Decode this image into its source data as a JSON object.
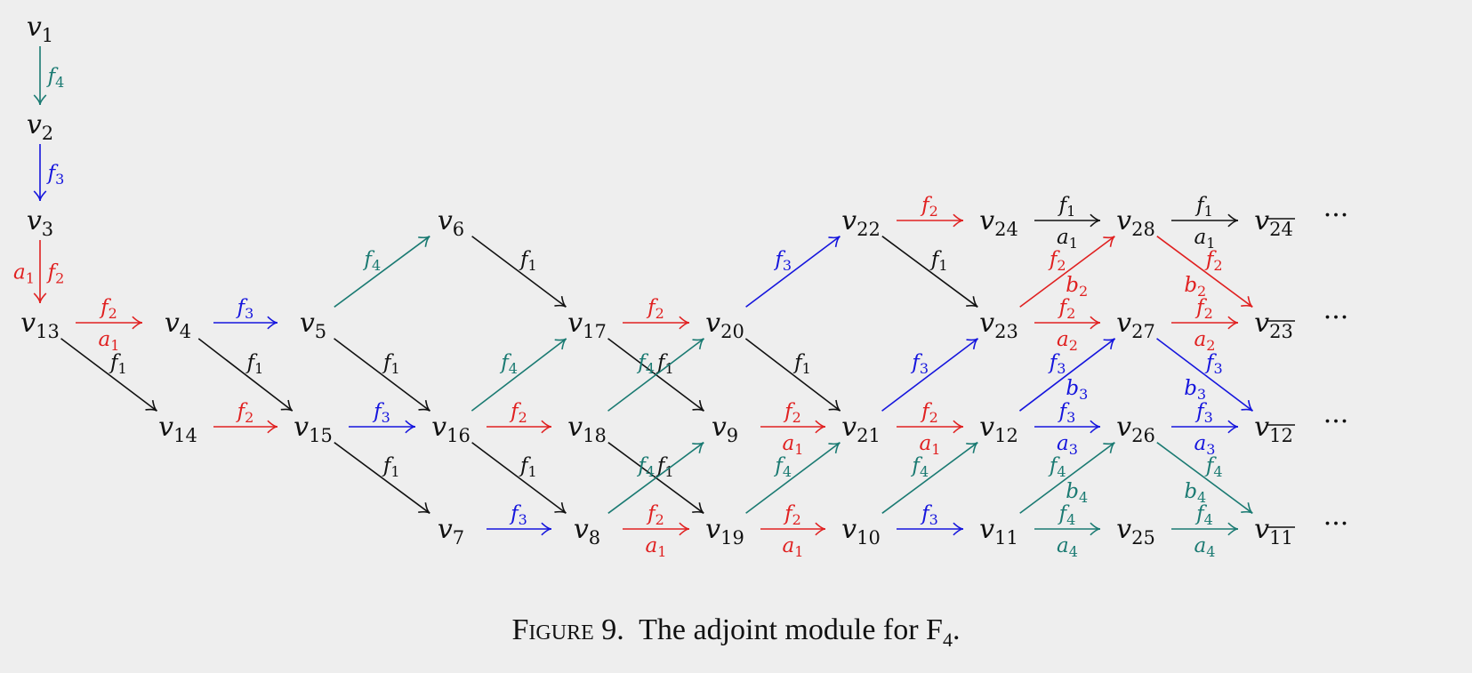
{
  "colors": {
    "black": "#111111",
    "red": "#e02020",
    "blue": "#1515dd",
    "teal": "#1a7a72"
  },
  "caption": {
    "prefix": "Figure 9.",
    "text": "The adjoint module for F",
    "sub": "4",
    "suffix": "."
  },
  "vertices": [
    {
      "id": "1",
      "label": "v",
      "sub": "1"
    },
    {
      "id": "2",
      "label": "v",
      "sub": "2"
    },
    {
      "id": "3",
      "label": "v",
      "sub": "3"
    },
    {
      "id": "13",
      "label": "v",
      "sub": "13"
    },
    {
      "id": "4",
      "label": "v",
      "sub": "4"
    },
    {
      "id": "14",
      "label": "v",
      "sub": "14"
    },
    {
      "id": "5",
      "label": "v",
      "sub": "5"
    },
    {
      "id": "15",
      "label": "v",
      "sub": "15"
    },
    {
      "id": "6",
      "label": "v",
      "sub": "6"
    },
    {
      "id": "16",
      "label": "v",
      "sub": "16"
    },
    {
      "id": "7",
      "label": "v",
      "sub": "7"
    },
    {
      "id": "17",
      "label": "v",
      "sub": "17"
    },
    {
      "id": "18",
      "label": "v",
      "sub": "18"
    },
    {
      "id": "8",
      "label": "v",
      "sub": "8"
    },
    {
      "id": "20",
      "label": "v",
      "sub": "20"
    },
    {
      "id": "9",
      "label": "v",
      "sub": "9"
    },
    {
      "id": "19",
      "label": "v",
      "sub": "19"
    },
    {
      "id": "22",
      "label": "v",
      "sub": "22"
    },
    {
      "id": "21",
      "label": "v",
      "sub": "21"
    },
    {
      "id": "10",
      "label": "v",
      "sub": "10"
    },
    {
      "id": "24",
      "label": "v",
      "sub": "24"
    },
    {
      "id": "23",
      "label": "v",
      "sub": "23"
    },
    {
      "id": "12",
      "label": "v",
      "sub": "12"
    },
    {
      "id": "11",
      "label": "v",
      "sub": "11"
    },
    {
      "id": "28",
      "label": "v",
      "sub": "28"
    },
    {
      "id": "27",
      "label": "v",
      "sub": "27"
    },
    {
      "id": "26",
      "label": "v",
      "sub": "26"
    },
    {
      "id": "25",
      "label": "v",
      "sub": "25"
    },
    {
      "id": "o24",
      "label": "v",
      "sub": "24",
      "overline": true
    },
    {
      "id": "o23",
      "label": "v",
      "sub": "23",
      "overline": true
    },
    {
      "id": "o12",
      "label": "v",
      "sub": "12",
      "overline": true
    },
    {
      "id": "o11",
      "label": "v",
      "sub": "11",
      "overline": true
    }
  ],
  "ellipsis": "···",
  "edges": [
    {
      "from": "1",
      "to": "2",
      "color": "teal",
      "labels": [
        {
          "t": "f",
          "s": "4"
        }
      ]
    },
    {
      "from": "2",
      "to": "3",
      "color": "blue",
      "labels": [
        {
          "t": "f",
          "s": "3"
        }
      ]
    },
    {
      "from": "3",
      "to": "13",
      "color": "red",
      "labels": [
        {
          "t": "f",
          "s": "2"
        }
      ],
      "labels2": [
        {
          "t": "a",
          "s": "1"
        }
      ]
    },
    {
      "from": "13",
      "to": "4",
      "color": "red",
      "labels": [
        {
          "t": "f",
          "s": "2"
        }
      ],
      "labels2": [
        {
          "t": "a",
          "s": "1"
        }
      ]
    },
    {
      "from": "13",
      "to": "14",
      "color": "black",
      "labels": [
        {
          "t": "f",
          "s": "1"
        }
      ]
    },
    {
      "from": "4",
      "to": "5",
      "color": "blue",
      "labels": [
        {
          "t": "f",
          "s": "3"
        }
      ]
    },
    {
      "from": "4",
      "to": "15",
      "color": "black",
      "labels": [
        {
          "t": "f",
          "s": "1"
        }
      ]
    },
    {
      "from": "14",
      "to": "15",
      "color": "red",
      "labels": [
        {
          "t": "f",
          "s": "2"
        }
      ]
    },
    {
      "from": "5",
      "to": "6",
      "color": "teal",
      "labels": [
        {
          "t": "f",
          "s": "4"
        }
      ]
    },
    {
      "from": "5",
      "to": "16",
      "color": "black",
      "labels": [
        {
          "t": "f",
          "s": "1"
        }
      ]
    },
    {
      "from": "15",
      "to": "16",
      "color": "blue",
      "labels": [
        {
          "t": "f",
          "s": "3"
        }
      ]
    },
    {
      "from": "15",
      "to": "7",
      "color": "black",
      "labels": [
        {
          "t": "f",
          "s": "1"
        }
      ]
    },
    {
      "from": "6",
      "to": "17",
      "color": "black",
      "labels": [
        {
          "t": "f",
          "s": "1"
        }
      ]
    },
    {
      "from": "16",
      "to": "17",
      "color": "teal",
      "labels": [
        {
          "t": "f",
          "s": "4"
        }
      ]
    },
    {
      "from": "16",
      "to": "18",
      "color": "red",
      "labels": [
        {
          "t": "f",
          "s": "2"
        }
      ]
    },
    {
      "from": "16",
      "to": "8",
      "color": "black",
      "labels": [
        {
          "t": "f",
          "s": "1"
        }
      ]
    },
    {
      "from": "7",
      "to": "8",
      "color": "blue",
      "labels": [
        {
          "t": "f",
          "s": "3"
        }
      ]
    },
    {
      "from": "17",
      "to": "20",
      "color": "red",
      "labels": [
        {
          "t": "f",
          "s": "2"
        }
      ]
    },
    {
      "from": "17",
      "to": "9",
      "color": "black",
      "labels": [
        {
          "t": "f",
          "s": "1"
        }
      ]
    },
    {
      "from": "18",
      "to": "20",
      "color": "teal",
      "labels": [
        {
          "t": "f",
          "s": "4"
        }
      ]
    },
    {
      "from": "18",
      "to": "19",
      "color": "black",
      "labels": [
        {
          "t": "f",
          "s": "1"
        }
      ]
    },
    {
      "from": "8",
      "to": "9",
      "color": "teal",
      "labels": [
        {
          "t": "f",
          "s": "4"
        }
      ]
    },
    {
      "from": "8",
      "to": "19",
      "color": "red",
      "labels": [
        {
          "t": "f",
          "s": "2"
        }
      ],
      "labels2": [
        {
          "t": "a",
          "s": "1"
        }
      ]
    },
    {
      "from": "20",
      "to": "22",
      "color": "blue",
      "labels": [
        {
          "t": "f",
          "s": "3"
        }
      ]
    },
    {
      "from": "20",
      "to": "21",
      "color": "black",
      "labels": [
        {
          "t": "f",
          "s": "1"
        }
      ]
    },
    {
      "from": "9",
      "to": "21",
      "color": "red",
      "labels": [
        {
          "t": "f",
          "s": "2"
        }
      ],
      "labels2": [
        {
          "t": "a",
          "s": "1"
        }
      ]
    },
    {
      "from": "19",
      "to": "21",
      "color": "teal",
      "labels": [
        {
          "t": "f",
          "s": "4"
        }
      ]
    },
    {
      "from": "19",
      "to": "10",
      "color": "red",
      "labels": [
        {
          "t": "f",
          "s": "2"
        }
      ],
      "labels2": [
        {
          "t": "a",
          "s": "1"
        }
      ]
    },
    {
      "from": "22",
      "to": "24",
      "color": "red",
      "labels": [
        {
          "t": "f",
          "s": "2"
        }
      ]
    },
    {
      "from": "22",
      "to": "23",
      "color": "black",
      "labels": [
        {
          "t": "f",
          "s": "1"
        }
      ]
    },
    {
      "from": "21",
      "to": "23",
      "color": "blue",
      "labels": [
        {
          "t": "f",
          "s": "3"
        }
      ]
    },
    {
      "from": "21",
      "to": "12",
      "color": "red",
      "labels": [
        {
          "t": "f",
          "s": "2"
        }
      ],
      "labels2": [
        {
          "t": "a",
          "s": "1"
        }
      ]
    },
    {
      "from": "10",
      "to": "12",
      "color": "teal",
      "labels": [
        {
          "t": "f",
          "s": "4"
        }
      ]
    },
    {
      "from": "10",
      "to": "11",
      "color": "blue",
      "labels": [
        {
          "t": "f",
          "s": "3"
        }
      ]
    },
    {
      "from": "24",
      "to": "28",
      "color": "black",
      "labels": [
        {
          "t": "f",
          "s": "1"
        }
      ],
      "labels2": [
        {
          "t": "a",
          "s": "1"
        }
      ]
    },
    {
      "from": "23",
      "to": "28",
      "color": "red",
      "labels": [
        {
          "t": "f",
          "s": "2"
        }
      ],
      "labels2": [
        {
          "t": "b",
          "s": "2"
        }
      ]
    },
    {
      "from": "23",
      "to": "27",
      "color": "red",
      "labels": [
        {
          "t": "f",
          "s": "2"
        }
      ],
      "labels2": [
        {
          "t": "a",
          "s": "2"
        }
      ]
    },
    {
      "from": "12",
      "to": "27",
      "color": "blue",
      "labels": [
        {
          "t": "f",
          "s": "3"
        }
      ],
      "labels2": [
        {
          "t": "b",
          "s": "3"
        }
      ]
    },
    {
      "from": "12",
      "to": "26",
      "color": "blue",
      "labels": [
        {
          "t": "f",
          "s": "3"
        }
      ],
      "labels2": [
        {
          "t": "a",
          "s": "3"
        }
      ]
    },
    {
      "from": "11",
      "to": "26",
      "color": "teal",
      "labels": [
        {
          "t": "f",
          "s": "4"
        }
      ],
      "labels2": [
        {
          "t": "b",
          "s": "4"
        }
      ]
    },
    {
      "from": "11",
      "to": "25",
      "color": "teal",
      "labels": [
        {
          "t": "f",
          "s": "4"
        }
      ],
      "labels2": [
        {
          "t": "a",
          "s": "4"
        }
      ]
    },
    {
      "from": "28",
      "to": "o24",
      "color": "black",
      "labels": [
        {
          "t": "f",
          "s": "1"
        }
      ],
      "labels2": [
        {
          "t": "a",
          "s": "1"
        }
      ]
    },
    {
      "from": "28",
      "to": "o23",
      "color": "red",
      "labels": [
        {
          "t": "f",
          "s": "2"
        }
      ],
      "labels2": [
        {
          "t": "b",
          "s": "2"
        }
      ]
    },
    {
      "from": "27",
      "to": "o23",
      "color": "red",
      "labels": [
        {
          "t": "f",
          "s": "2"
        }
      ],
      "labels2": [
        {
          "t": "a",
          "s": "2"
        }
      ]
    },
    {
      "from": "27",
      "to": "o12",
      "color": "blue",
      "labels": [
        {
          "t": "f",
          "s": "3"
        }
      ],
      "labels2": [
        {
          "t": "b",
          "s": "3"
        }
      ]
    },
    {
      "from": "26",
      "to": "o12",
      "color": "blue",
      "labels": [
        {
          "t": "f",
          "s": "3"
        }
      ],
      "labels2": [
        {
          "t": "a",
          "s": "3"
        }
      ]
    },
    {
      "from": "26",
      "to": "o11",
      "color": "teal",
      "labels": [
        {
          "t": "f",
          "s": "4"
        }
      ],
      "labels2": [
        {
          "t": "b",
          "s": "4"
        }
      ]
    },
    {
      "from": "25",
      "to": "o11",
      "color": "teal",
      "labels": [
        {
          "t": "f",
          "s": "4"
        }
      ],
      "labels2": [
        {
          "t": "a",
          "s": "4"
        }
      ]
    }
  ]
}
